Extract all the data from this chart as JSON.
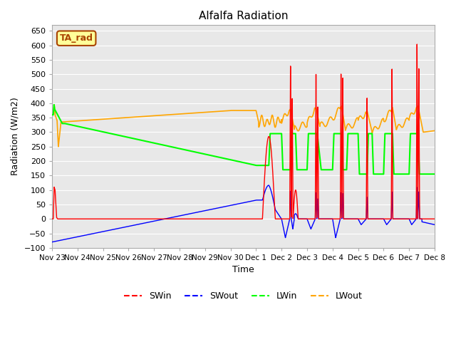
{
  "title": "Alfalfa Radiation",
  "ylabel": "Radiation (W/m2)",
  "xlabel": "Time",
  "ylim": [
    -100,
    670
  ],
  "background_color": "#e8e8e8",
  "annotation_text": "TA_rad",
  "annotation_bg": "#ffff99",
  "annotation_border": "#aa4400",
  "tick_labels": [
    "Nov 23",
    "Nov 24",
    "Nov 25",
    "Nov 26",
    "Nov 27",
    "Nov 28",
    "Nov 29",
    "Nov 30",
    "Dec 1",
    "Dec 2",
    "Dec 3",
    "Dec 4",
    "Dec 5",
    "Dec 6",
    "Dec 7",
    "Dec 8"
  ],
  "legend_labels": [
    "SWin",
    "SWout",
    "LWin",
    "LWout"
  ],
  "legend_colors": [
    "red",
    "blue",
    "green",
    "orange"
  ]
}
